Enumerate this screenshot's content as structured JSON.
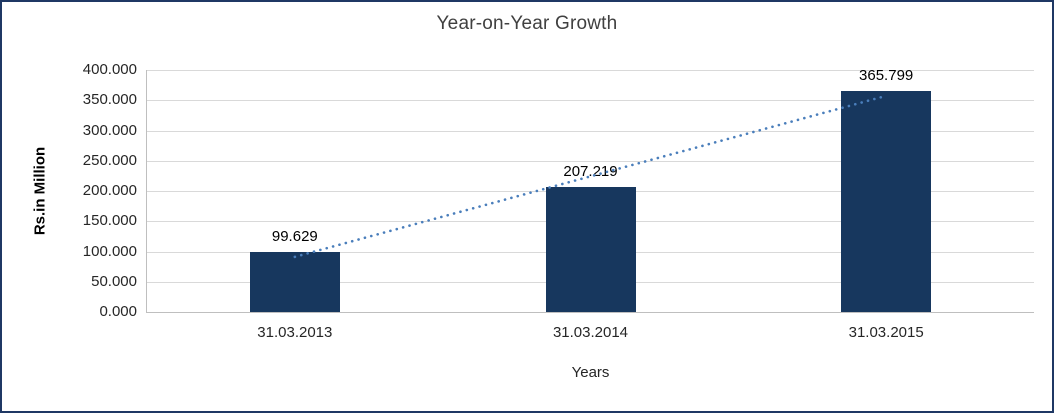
{
  "chart_data": {
    "type": "bar",
    "title": "Year-on-Year Growth",
    "xlabel": "Years",
    "ylabel": "Rs.in Million",
    "categories": [
      "31.03.2013",
      "31.03.2014",
      "31.03.2015"
    ],
    "values": [
      99.629,
      207.219,
      365.799
    ],
    "value_labels": [
      "99.629",
      "207.219",
      "365.799"
    ],
    "ylim": [
      0,
      400
    ],
    "y_tick_step": 50,
    "y_tick_labels": [
      "0.000",
      "50.000",
      "100.000",
      "150.000",
      "200.000",
      "250.000",
      "300.000",
      "350.000",
      "400.000"
    ],
    "grid": true,
    "legend": "none",
    "trendline": {
      "type": "linear",
      "style": "dotted"
    },
    "colors": {
      "bar": "#17375E",
      "trendline": "#4A7EBB",
      "frame_border": "#1F3864",
      "gridline": "#D9D9D9",
      "axis": "#BFBFBF",
      "title_text": "#404040",
      "tick_text": "#262626"
    }
  }
}
